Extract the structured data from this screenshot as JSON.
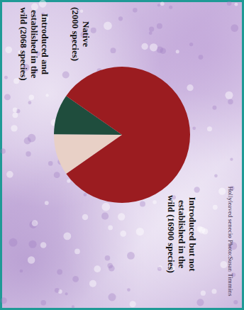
{
  "chart_data": {
    "type": "pie",
    "categories": [
      "Introduced and established in the wild",
      "Native",
      "Introduced but not established in the wild"
    ],
    "values": [
      2068,
      2000,
      16900
    ],
    "value_labels": [
      "(2068 species)",
      "(2000 species)",
      "(16900 species)"
    ],
    "colors": [
      "#e8d0c6",
      "#1f4d3d",
      "#9b1c20"
    ],
    "data_labels": true,
    "annotations": [
      "Hollyleaved senecio  Photo:Susan Timmins"
    ]
  }
}
